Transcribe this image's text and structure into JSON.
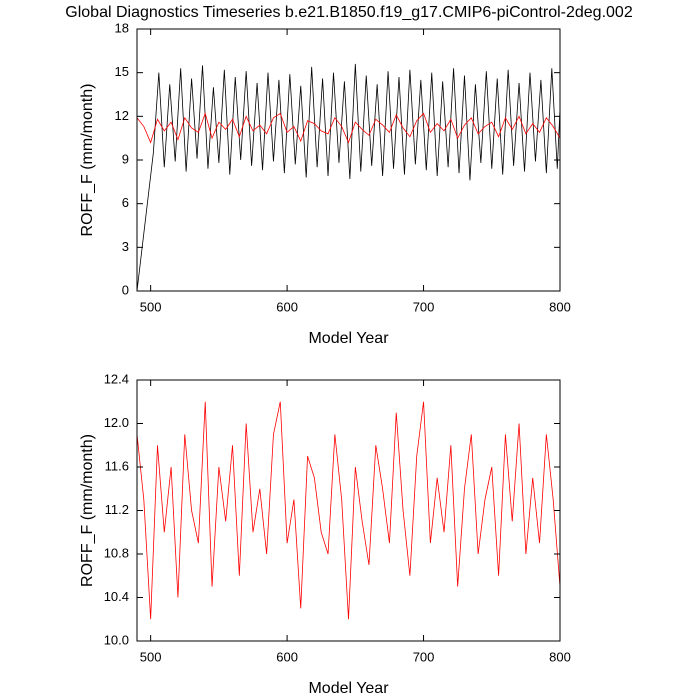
{
  "chart_data": [
    {
      "type": "line",
      "title": "Global Diagnostics Timeseries b.e21.B1850.f19_g17.CMIP6-piControl-2deg.002",
      "ylabel": "ROFF_F (mm/month)",
      "xlabel": "Model Year",
      "xlim": [
        490,
        800
      ],
      "xticks": [
        500,
        600,
        700,
        800
      ],
      "ylim": [
        0,
        18
      ],
      "yticks": [
        0,
        3,
        6,
        9,
        12,
        15,
        18
      ],
      "series": [
        {
          "color": "#000000",
          "x": [
            490,
            502,
            506,
            510,
            514,
            518,
            522,
            526,
            530,
            534,
            538,
            542,
            546,
            550,
            554,
            558,
            562,
            566,
            570,
            574,
            578,
            582,
            586,
            590,
            594,
            598,
            602,
            606,
            610,
            614,
            618,
            622,
            626,
            630,
            634,
            638,
            642,
            646,
            650,
            654,
            658,
            662,
            666,
            670,
            674,
            678,
            682,
            686,
            690,
            694,
            698,
            702,
            706,
            710,
            714,
            718,
            722,
            726,
            730,
            734,
            738,
            742,
            746,
            750,
            754,
            758,
            762,
            766,
            770,
            774,
            778,
            782,
            786,
            790,
            794,
            798,
            800
          ],
          "values": [
            0,
            9.5,
            15.0,
            8.5,
            14.2,
            8.9,
            15.3,
            8.2,
            14.6,
            9.1,
            15.5,
            8.4,
            14.0,
            8.8,
            15.2,
            8.0,
            14.7,
            9.0,
            15.1,
            8.6,
            14.3,
            8.3,
            15.0,
            8.9,
            14.5,
            8.1,
            14.9,
            8.7,
            14.1,
            7.8,
            15.4,
            8.5,
            14.6,
            7.9,
            15.0,
            8.8,
            14.4,
            7.7,
            15.6,
            8.2,
            14.8,
            8.6,
            14.2,
            7.9,
            15.1,
            8.4,
            14.7,
            8.0,
            15.2,
            8.7,
            14.5,
            8.3,
            15.0,
            7.9,
            14.4,
            8.5,
            15.3,
            8.1,
            14.8,
            7.6,
            14.2,
            8.8,
            15.1,
            8.4,
            14.6,
            8.0,
            15.2,
            8.6,
            14.3,
            8.2,
            15.0,
            8.9,
            14.5,
            8.1,
            15.3,
            8.4,
            12.5
          ]
        },
        {
          "color": "#ff0000",
          "x": [
            490,
            495,
            500,
            505,
            510,
            515,
            520,
            525,
            530,
            535,
            540,
            545,
            550,
            555,
            560,
            565,
            570,
            575,
            580,
            585,
            590,
            595,
            600,
            605,
            610,
            615,
            620,
            625,
            630,
            635,
            640,
            645,
            650,
            655,
            660,
            665,
            670,
            675,
            680,
            685,
            690,
            695,
            700,
            705,
            710,
            715,
            720,
            725,
            730,
            735,
            740,
            745,
            750,
            755,
            760,
            765,
            770,
            775,
            780,
            785,
            790,
            795,
            800
          ],
          "values": [
            11.9,
            11.3,
            10.2,
            11.8,
            11.0,
            11.6,
            10.4,
            11.9,
            11.2,
            10.9,
            12.2,
            10.5,
            11.6,
            11.1,
            11.8,
            10.6,
            12.0,
            11.0,
            11.4,
            10.8,
            11.9,
            12.2,
            10.9,
            11.3,
            10.3,
            11.7,
            11.5,
            11.0,
            10.8,
            11.9,
            11.3,
            10.2,
            11.6,
            11.1,
            10.7,
            11.8,
            11.4,
            10.9,
            12.1,
            11.2,
            10.6,
            11.7,
            12.2,
            10.9,
            11.5,
            11.0,
            11.8,
            10.5,
            11.4,
            11.9,
            10.8,
            11.3,
            11.6,
            10.6,
            11.9,
            11.1,
            12.0,
            10.8,
            11.5,
            10.9,
            11.9,
            11.3,
            10.5
          ]
        }
      ]
    },
    {
      "type": "line",
      "ylabel": "ROFF_F (mm/month)",
      "xlabel": "Model Year",
      "xlim": [
        490,
        800
      ],
      "xticks": [
        500,
        600,
        700,
        800
      ],
      "ylim": [
        10.0,
        12.4
      ],
      "yticks": [
        {
          "value": 10.0,
          "label": "10.0"
        },
        {
          "value": 10.4,
          "label": "10.4"
        },
        {
          "value": 10.8,
          "label": "10.8"
        },
        {
          "value": 11.2,
          "label": "11.2"
        },
        {
          "value": 11.6,
          "label": "11.6"
        },
        {
          "value": 12.0,
          "label": "12.0"
        },
        {
          "value": 12.4,
          "label": "12.4"
        }
      ],
      "series": [
        {
          "color": "#ff0000",
          "x": [
            490,
            495,
            500,
            505,
            510,
            515,
            520,
            525,
            530,
            535,
            540,
            545,
            550,
            555,
            560,
            565,
            570,
            575,
            580,
            585,
            590,
            595,
            600,
            605,
            610,
            615,
            620,
            625,
            630,
            635,
            640,
            645,
            650,
            655,
            660,
            665,
            670,
            675,
            680,
            685,
            690,
            695,
            700,
            705,
            710,
            715,
            720,
            725,
            730,
            735,
            740,
            745,
            750,
            755,
            760,
            765,
            770,
            775,
            780,
            785,
            790,
            795,
            800
          ],
          "values": [
            11.9,
            11.3,
            10.2,
            11.8,
            11.0,
            11.6,
            10.4,
            11.9,
            11.2,
            10.9,
            12.2,
            10.5,
            11.6,
            11.1,
            11.8,
            10.6,
            12.0,
            11.0,
            11.4,
            10.8,
            11.9,
            12.2,
            10.9,
            11.3,
            10.3,
            11.7,
            11.5,
            11.0,
            10.8,
            11.9,
            11.3,
            10.2,
            11.6,
            11.1,
            10.7,
            11.8,
            11.4,
            10.9,
            12.1,
            11.2,
            10.6,
            11.7,
            12.2,
            10.9,
            11.5,
            11.0,
            11.8,
            10.5,
            11.4,
            11.9,
            10.8,
            11.3,
            11.6,
            10.6,
            11.9,
            11.1,
            12.0,
            10.8,
            11.5,
            10.9,
            11.9,
            11.3,
            10.5
          ]
        }
      ]
    }
  ]
}
